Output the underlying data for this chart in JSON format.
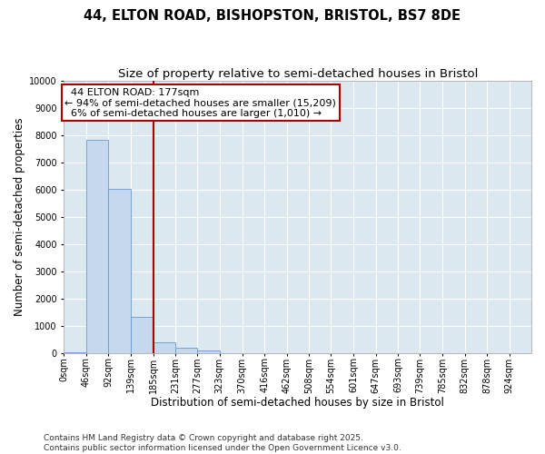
{
  "title_line1": "44, ELTON ROAD, BISHOPSTON, BRISTOL, BS7 8DE",
  "title_line2": "Size of property relative to semi-detached houses in Bristol",
  "xlabel": "Distribution of semi-detached houses by size in Bristol",
  "ylabel": "Number of semi-detached properties",
  "annotation_title": "44 ELTON ROAD: 177sqm",
  "annotation_line1": "← 94% of semi-detached houses are smaller (15,209)",
  "annotation_line2": "6% of semi-detached houses are larger (1,010) →",
  "footer_line1": "Contains HM Land Registry data © Crown copyright and database right 2025.",
  "footer_line2": "Contains public sector information licensed under the Open Government Licence v3.0.",
  "bar_color": "#c5d8ee",
  "bar_edge_color": "#6699cc",
  "vline_color": "#aa0000",
  "fig_bg_color": "#ffffff",
  "plot_bg_color": "#dce8f0",
  "categories": [
    "0sqm",
    "46sqm",
    "92sqm",
    "139sqm",
    "185sqm",
    "231sqm",
    "277sqm",
    "323sqm",
    "370sqm",
    "416sqm",
    "462sqm",
    "508sqm",
    "554sqm",
    "601sqm",
    "647sqm",
    "693sqm",
    "739sqm",
    "785sqm",
    "832sqm",
    "878sqm",
    "924sqm"
  ],
  "bar_values": [
    30,
    7850,
    6050,
    1350,
    400,
    190,
    95,
    0,
    0,
    0,
    0,
    0,
    0,
    0,
    0,
    0,
    0,
    0,
    0,
    0,
    0
  ],
  "bin_edges": [
    0,
    46,
    92,
    139,
    185,
    231,
    277,
    323,
    370,
    416,
    462,
    508,
    554,
    601,
    647,
    693,
    739,
    785,
    832,
    878,
    924
  ],
  "bin_width": 46,
  "vline_x": 185,
  "ylim": [
    0,
    10000
  ],
  "yticks": [
    0,
    1000,
    2000,
    3000,
    4000,
    5000,
    6000,
    7000,
    8000,
    9000,
    10000
  ],
  "title_fontsize": 10.5,
  "subtitle_fontsize": 9.5,
  "axis_label_fontsize": 8.5,
  "tick_fontsize": 7,
  "annotation_fontsize": 8,
  "footer_fontsize": 6.5
}
